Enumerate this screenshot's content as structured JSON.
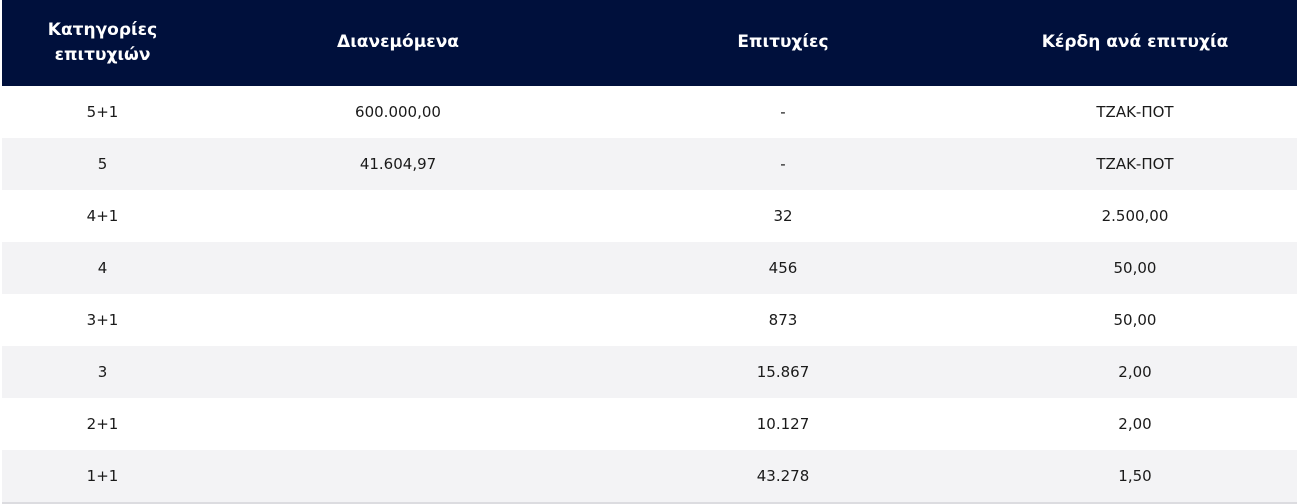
{
  "table": {
    "headers": [
      "Κατηγορίες επιτυχιών",
      "Διανεμόμενα",
      "Επιτυχίες",
      "Κέρδη ανά επιτυχία"
    ],
    "rows": [
      [
        "5+1",
        "600.000,00",
        "-",
        "ΤΖΑΚ-ΠΟΤ"
      ],
      [
        "5",
        "41.604,97",
        "-",
        "ΤΖΑΚ-ΠΟΤ"
      ],
      [
        "4+1",
        "",
        "32",
        "2.500,00"
      ],
      [
        "4",
        "",
        "456",
        "50,00"
      ],
      [
        "3+1",
        "",
        "873",
        "50,00"
      ],
      [
        "3",
        "",
        "15.867",
        "2,00"
      ],
      [
        "2+1",
        "",
        "10.127",
        "2,00"
      ],
      [
        "1+1",
        "",
        "43.278",
        "1,50"
      ]
    ]
  },
  "colors": {
    "header_bg": "#00103c",
    "header_text": "#ffffff",
    "row_alt_bg": "#f3f3f5"
  }
}
